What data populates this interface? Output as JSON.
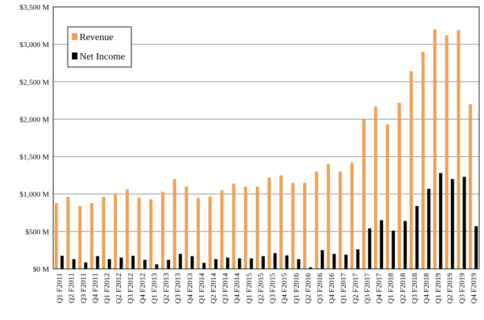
{
  "chart_data": {
    "type": "bar",
    "title": "",
    "xlabel": "",
    "ylabel": "",
    "ylim": [
      0,
      3500
    ],
    "yticks": [
      0,
      500,
      1000,
      1500,
      2000,
      2500,
      3000,
      3500
    ],
    "ytick_labels": [
      "$0 M",
      "$500 M",
      "$1,000 M",
      "$1,500 M",
      "$2,000 M",
      "$2,500 M",
      "$3,000 M",
      "$3,500 M"
    ],
    "grid": "horizontal",
    "legend_position": "top-left",
    "categories": [
      "Q1 F2011",
      "Q2 F2011",
      "Q3 F2011",
      "Q4 F2011",
      "Q1 F2012",
      "Q2 F2012",
      "Q3 F2012",
      "Q4 F2012",
      "Q1 F2013",
      "Q2 F2013",
      "Q3 F2013",
      "Q4 F2013",
      "Q1 F2014",
      "Q2 F2014",
      "Q3 F2014",
      "Q4 F2014",
      "Q1 F2015",
      "Q2 F2015",
      "Q3 F2015",
      "Q4 F2015",
      "Q1 F2016",
      "Q2 F2016",
      "Q3 F2016",
      "Q4 F2016",
      "Q1 F2017",
      "Q2 F2017",
      "Q3 F2017",
      "Q4 F2017",
      "Q1 F2018",
      "Q2 F2018",
      "Q3 F2018",
      "Q4 F2018",
      "Q1 F2019",
      "Q2 F2019",
      "Q3 F2019",
      "Q4 F2019"
    ],
    "series": [
      {
        "name": "Revenue",
        "color": "#F0A050",
        "values": [
          880,
          960,
          840,
          880,
          960,
          1000,
          1060,
          950,
          930,
          1030,
          1200,
          1100,
          950,
          970,
          1050,
          1140,
          1100,
          1100,
          1220,
          1250,
          1150,
          1150,
          1300,
          1400,
          1300,
          1420,
          2000,
          2170,
          1930,
          2220,
          2640,
          2900,
          3200,
          3120,
          3190,
          2200
        ]
      },
      {
        "name": "Net Income",
        "color": "#000000",
        "values": [
          175,
          130,
          85,
          170,
          130,
          150,
          175,
          120,
          60,
          120,
          200,
          170,
          80,
          130,
          150,
          140,
          140,
          170,
          210,
          180,
          130,
          20,
          250,
          200,
          190,
          260,
          540,
          650,
          510,
          640,
          840,
          1070,
          1280,
          1200,
          1230,
          570
        ]
      }
    ]
  }
}
